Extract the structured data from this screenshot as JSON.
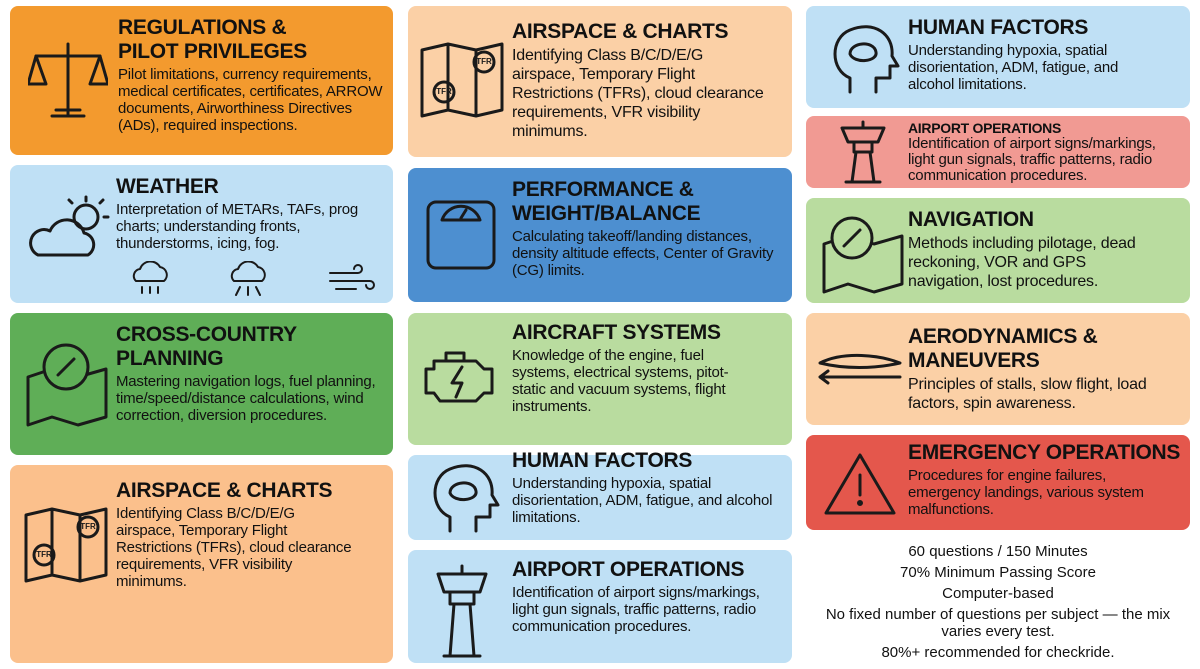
{
  "cards": [
    {
      "title": "REGULATIONS & PILOT PRIVILEGES",
      "body": "Pilot limitations, currency requirements, medical certificates, certificates, ARROW documents, Airworthiness Directives (ADs), required inspections."
    },
    {
      "title": "WEATHER",
      "body": "Interpretation of METARs, TAFs, prog charts; understanding fronts, thunderstorms, icing, fog."
    },
    {
      "title": "CROSS-COUNTRY PLANNING",
      "body": "Mastering navigation logs, fuel planning, time/speed/distance calculations, wind correction, diversion procedures."
    },
    {
      "title": "AIRSPACE & CHARTS",
      "body": "Identifying Class B/C/D/E/G airspace, Temporary Flight Restrictions (TFRs), cloud clearance requirements, VFR visibility minimums.",
      "icon_text": [
        "TFR",
        "TFR"
      ]
    },
    {
      "title": "AIRSPACE & CHARTS",
      "body": "Identifying Class B/C/D/E/G airspace, Temporary Flight Restrictions (TFRs), cloud clearance requirements, VFR visibility minimums.",
      "icon_text": [
        "TFR",
        "TFR"
      ]
    },
    {
      "title": "PERFORMANCE & WEIGHT/BALANCE",
      "body": "Calculating takeoff/landing distances, density altitude effects, Center of Gravity (CG) limits."
    },
    {
      "title": "AIRCRAFT SYSTEMS",
      "body": "Knowledge of the engine, fuel systems, electrical systems, pitot-static and vacuum systems, flight instruments."
    },
    {
      "title": "HUMAN FACTORS",
      "body": "Understanding hypoxia, spatial disorientation, ADM, fatigue, and alcohol limitations."
    },
    {
      "title": "AIRPORT OPERATIONS",
      "body": "Identification of airport signs/markings, light gun signals, traffic patterns, radio communication procedures."
    },
    {
      "title": "HUMAN FACTORS",
      "body": "Understanding hypoxia, spatial disorientation, ADM, fatigue, and alcohol limitations."
    },
    {
      "title": "AIRPORT OPERATIONS",
      "body": "Identification of airport signs/markings, light gun signals, traffic patterns, radio communication procedures."
    },
    {
      "title": "NAVIGATION",
      "body": "Methods including pilotage, dead reckoning, VOR and GPS navigation, lost procedures."
    },
    {
      "title": "AERODYNAMICS & MANEUVERS",
      "body": "Principles of stalls, slow flight, load factors, spin awareness."
    },
    {
      "title": "EMERGENCY OPERATIONS",
      "body": "Procedures for engine failures, emergency landings, various system malfunctions."
    }
  ],
  "footer": [
    "60 questions / 150 Minutes",
    "70% Minimum Passing Score",
    "Computer-based",
    "No fixed number of questions per subject — the mix varies every test.",
    "80%+ recommended for checkride."
  ]
}
